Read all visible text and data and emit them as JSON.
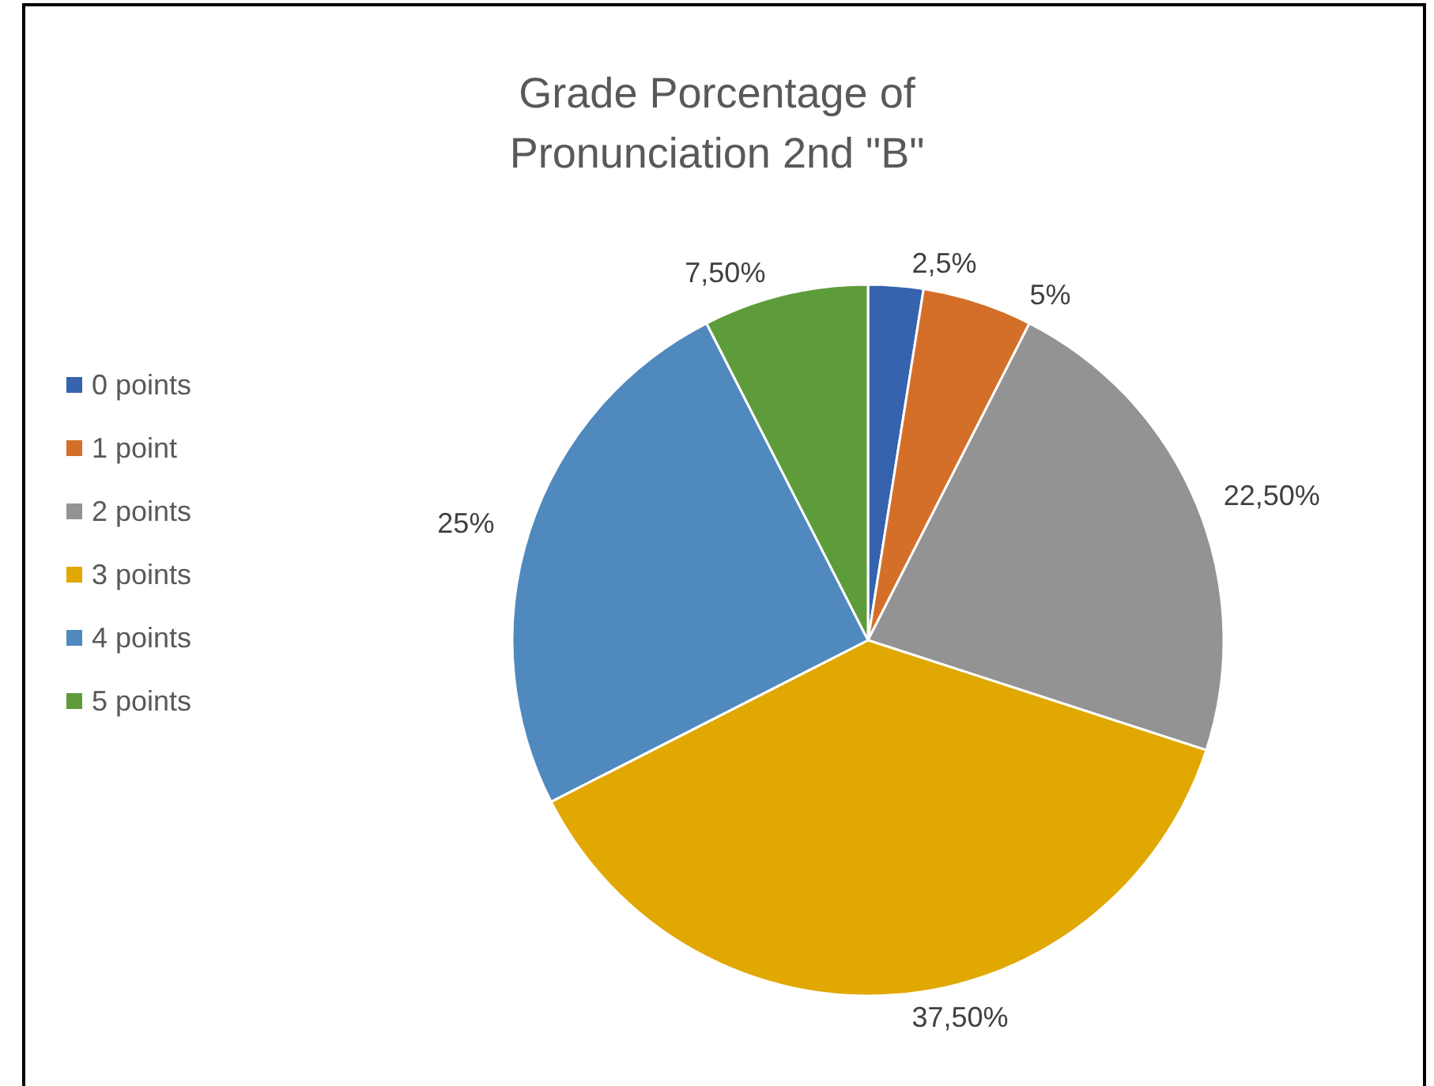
{
  "chart_data": {
    "type": "pie",
    "title": "Grade Porcentage of\nPronunciation 2nd \"B\"",
    "categories": [
      "0 points",
      "1 point",
      "2 points",
      "3 points",
      "4 points",
      "5 points"
    ],
    "values": [
      2.5,
      5,
      22.5,
      37.5,
      25,
      7.5
    ],
    "value_labels": [
      "2,5%",
      "5%",
      "22,50%",
      "37,50%",
      "25%",
      "7,50%"
    ],
    "colors": [
      "#3563ad",
      "#d46f2a",
      "#939393",
      "#e0a800",
      "#4f89bd",
      "#5e9b3b"
    ],
    "legend": "left"
  }
}
